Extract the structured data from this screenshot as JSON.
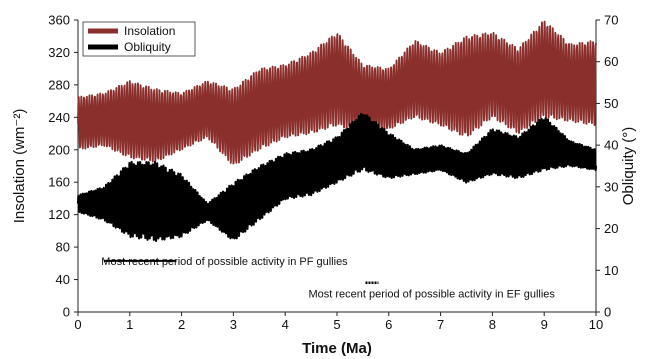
{
  "chart_data": {
    "type": "line",
    "xlabel": "Time (Ma)",
    "ylabel_left": "Insolation (wm⁻²)",
    "ylabel_right": "Obliquity (°)",
    "xlim": [
      0,
      10
    ],
    "ylim_left": [
      0,
      360
    ],
    "ylim_right": [
      0,
      70
    ],
    "x_ticks": [
      "0",
      "1",
      "2",
      "3",
      "4",
      "5",
      "6",
      "7",
      "8",
      "9",
      "10"
    ],
    "y_ticks_left": [
      "0",
      "40",
      "80",
      "120",
      "160",
      "200",
      "240",
      "280",
      "320",
      "360"
    ],
    "y_ticks_right": [
      "0",
      "10",
      "20",
      "30",
      "40",
      "50",
      "60",
      "70"
    ],
    "legend_position": "top-left",
    "series": [
      {
        "name": "Insolation",
        "axis": "left",
        "color": "#8b2f2c",
        "x": [
          0.0,
          0.5,
          1.0,
          1.5,
          2.0,
          2.5,
          3.0,
          3.5,
          4.0,
          4.5,
          5.0,
          5.5,
          6.0,
          6.5,
          7.0,
          7.5,
          8.0,
          8.5,
          9.0,
          9.5,
          10.0
        ],
        "min": [
          200,
          205,
          190,
          185,
          200,
          215,
          180,
          200,
          215,
          220,
          230,
          220,
          225,
          240,
          230,
          215,
          240,
          220,
          240,
          235,
          230
        ],
        "max": [
          265,
          270,
          285,
          275,
          270,
          285,
          275,
          300,
          305,
          320,
          345,
          305,
          300,
          335,
          320,
          340,
          345,
          325,
          360,
          330,
          335
        ]
      },
      {
        "name": "Obliquity",
        "axis": "right",
        "color": "#000000",
        "x": [
          0.0,
          0.5,
          1.0,
          1.5,
          2.0,
          2.5,
          3.0,
          3.5,
          4.0,
          4.5,
          5.0,
          5.5,
          6.0,
          6.5,
          7.0,
          7.5,
          8.0,
          8.5,
          9.0,
          9.5,
          10.0
        ],
        "min": [
          24,
          22,
          18,
          17,
          18,
          22,
          17,
          22,
          27,
          28,
          31,
          34,
          32,
          33,
          34,
          31,
          33,
          32,
          34,
          35,
          34
        ],
        "max": [
          28,
          30,
          36,
          36,
          33,
          26,
          31,
          35,
          38,
          39,
          42,
          48,
          43,
          39,
          40,
          38,
          44,
          42,
          47,
          41,
          39
        ]
      }
    ],
    "annotations": [
      {
        "text": "Most recent period of  possible activity in PF gullies",
        "x_start": 0.5,
        "x_end": 1.9,
        "y_text": 80,
        "y_line": 63
      },
      {
        "text": "Most recent period of possible activity in EF gullies",
        "x_start": 5.55,
        "x_end": 5.8,
        "y_text": 18,
        "y_line": 36
      }
    ]
  }
}
